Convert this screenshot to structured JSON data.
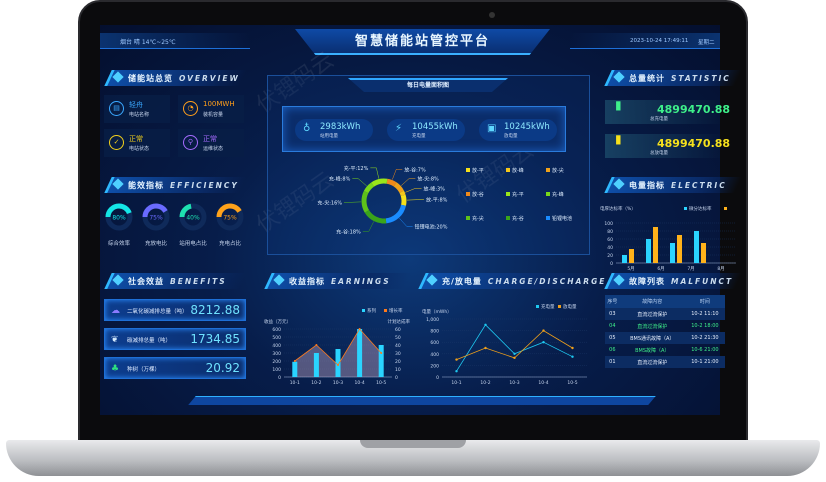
{
  "header": {
    "weather": "烟台 晴 14℃~25℃",
    "title": "智慧储能站管控平台",
    "datetime": "2023-10-24 17:49:11",
    "weekday": "星期二"
  },
  "overview": {
    "title": "储能站总览",
    "title_en": "OVERVIEW",
    "cards": [
      {
        "value": "轻舟",
        "label": "电站名称",
        "color": "#3aa8ff",
        "icon": "document-icon"
      },
      {
        "value": "100MWH",
        "label": "装机容量",
        "color": "#ff9e1b",
        "icon": "pie-icon"
      },
      {
        "value": "正常",
        "label": "电站状态",
        "color": "#f2d01b",
        "icon": "check-icon"
      },
      {
        "value": "正常",
        "label": "运维状态",
        "color": "#a66bff",
        "icon": "location-icon"
      }
    ]
  },
  "efficiency": {
    "title": "能效指标",
    "title_en": "EFFICIENCY",
    "gauges": [
      {
        "value": 80,
        "text": "80%",
        "label": "综合效率",
        "color": "#14e6e6"
      },
      {
        "value": 75,
        "text": "75%",
        "label": "充放电比",
        "color": "#6a6bff"
      },
      {
        "value": 40,
        "text": "40%",
        "label": "站用电占比",
        "color": "#1ee0b0"
      },
      {
        "value": 75,
        "text": "75%",
        "label": "充电占比",
        "color": "#ffa21a"
      }
    ]
  },
  "benefits": {
    "title": "社会效益",
    "title_en": "BENEFITS",
    "items": [
      {
        "label": "二氧化碳减排总量（吨）",
        "value": "8212.88",
        "icon": "cloud-icon",
        "color": "#8a7bff"
      },
      {
        "label": "碳减排总量（吨）",
        "value": "1734.85",
        "icon": "leaf-icon",
        "color": "#d6ecff"
      },
      {
        "label": "种树（万棵）",
        "value": "20.92",
        "icon": "tree-icon",
        "color": "#2ee080"
      }
    ]
  },
  "daily": {
    "title": "每日电量面积图",
    "kpis": [
      {
        "value": "2983kWh",
        "label": "站用电量",
        "icon": "bulb-icon"
      },
      {
        "value": "10455kWh",
        "label": "充电量",
        "icon": "battery-charge-icon"
      },
      {
        "value": "10245kWh",
        "label": "放电量",
        "icon": "calendar-battery-icon"
      }
    ]
  },
  "earnings": {
    "title": "收益指标",
    "title_en": "EARNINGS"
  },
  "charge": {
    "title": "充/放电量",
    "title_en": "CHARGE/DISCHARGE"
  },
  "statistics": {
    "title": "总量统计",
    "title_en": "STATISTIC",
    "items": [
      {
        "value": "4899470.88",
        "label": "总充电量",
        "color": "#3ef08a",
        "icon": "battery-icon"
      },
      {
        "value": "4899470.88",
        "label": "总放电量",
        "color": "#f6e11c",
        "icon": "battery-icon"
      }
    ]
  },
  "electric": {
    "title": "电量指标",
    "title_en": "ELECTRIC"
  },
  "malfunction": {
    "title": "故障列表",
    "title_en": "MALFUNCT",
    "columns": [
      "序号",
      "故障内容",
      "时间"
    ],
    "rows": [
      {
        "no": "03",
        "content": "直流过流保护",
        "time": "10-2 11:10",
        "green": false
      },
      {
        "no": "04",
        "content": "直流过流保护",
        "time": "10-2 18:00",
        "green": true
      },
      {
        "no": "05",
        "content": "BMS通讯故障（A）",
        "time": "10-2 21:30",
        "green": false
      },
      {
        "no": "06",
        "content": "BMS故障（A）",
        "time": "10-6 21:00",
        "green": true
      },
      {
        "no": "01",
        "content": "直流过流保护",
        "time": "10-1 21:00",
        "green": false
      }
    ]
  },
  "watermark": "伏锂码云",
  "chart_data": [
    {
      "type": "pie",
      "id": "donut",
      "series": [
        {
          "name": "放-谷",
          "value": 7,
          "label": "放-谷:7%",
          "color": "#f08a1a"
        },
        {
          "name": "放-尖",
          "value": 8,
          "label": "放-尖:8%",
          "color": "#f0a21a"
        },
        {
          "name": "放-峰",
          "value": 3,
          "label": "放-峰:3%",
          "color": "#f5c71a"
        },
        {
          "name": "放-平",
          "value": 8,
          "label": "放-平:8%",
          "color": "#f5e01a"
        },
        {
          "name": "铅锂电池",
          "value": 20,
          "label": "铅锂电池:20%",
          "color": "#1a8cff"
        },
        {
          "name": "充-谷",
          "value": 18,
          "label": "充-谷:18%",
          "color": "#3aa41a"
        },
        {
          "name": "充-尖",
          "value": 16,
          "label": "充-尖:16%",
          "color": "#5ec21a"
        },
        {
          "name": "充-峰",
          "value": 8,
          "label": "充-峰:8%",
          "color": "#7ad81a"
        },
        {
          "name": "充-平",
          "value": 12,
          "label": "充-平:12%",
          "color": "#9ae61a"
        }
      ],
      "legend": [
        "放-平",
        "放-峰",
        "放-尖",
        "放-谷",
        "充-平",
        "充-峰",
        "充-尖",
        "充-谷",
        "铅锂电池"
      ]
    },
    {
      "type": "bar",
      "id": "earnings",
      "categories": [
        "10-1",
        "10-2",
        "10-3",
        "10-4",
        "10-5"
      ],
      "ylabel": "收益（万元）",
      "y2label": "计划达成率",
      "ylim": [
        0,
        600
      ],
      "y2lim": [
        0,
        60
      ],
      "yticks": [
        0,
        100,
        200,
        300,
        400,
        500,
        600
      ],
      "y2ticks": [
        0,
        10,
        20,
        30,
        40,
        50,
        60
      ],
      "series": [
        {
          "name": "系列",
          "type": "bar",
          "values": [
            190,
            300,
            350,
            600,
            400
          ],
          "color": "#2ad4ff"
        },
        {
          "name": "增长率",
          "type": "line",
          "axis": "right",
          "values": [
            20,
            40,
            15,
            60,
            30
          ],
          "color": "#ff7a1a"
        }
      ],
      "legend": "top-right"
    },
    {
      "type": "line",
      "id": "charge",
      "categories": [
        "10-1",
        "10-2",
        "10-3",
        "10-4",
        "10-5"
      ],
      "ylabel": "电量（mWh）",
      "ylim": [
        0,
        1000
      ],
      "yticks": [
        "0",
        "200",
        "400",
        "600",
        "800",
        "1,000"
      ],
      "series": [
        {
          "name": "充电量",
          "values": [
            100,
            900,
            400,
            600,
            350
          ],
          "color": "#1ec8f0"
        },
        {
          "name": "放电量",
          "values": [
            300,
            500,
            330,
            800,
            500
          ],
          "color": "#f0a01a"
        }
      ],
      "legend": "top-right"
    },
    {
      "type": "bar",
      "id": "electric",
      "categories": [
        "5月",
        "6月",
        "7月",
        "8月"
      ],
      "ylabel": "电厚达标率（%）",
      "ylim": [
        0,
        100
      ],
      "yticks": [
        0,
        20,
        40,
        60,
        80,
        100
      ],
      "series": [
        {
          "name": "微分达标率",
          "values": [
            20,
            60,
            50,
            80
          ],
          "color": "#2ad4ff"
        },
        {
          "name": "",
          "values": [
            35,
            90,
            70,
            50
          ],
          "color": "#ffb21a"
        }
      ],
      "legend": "top-right"
    }
  ]
}
